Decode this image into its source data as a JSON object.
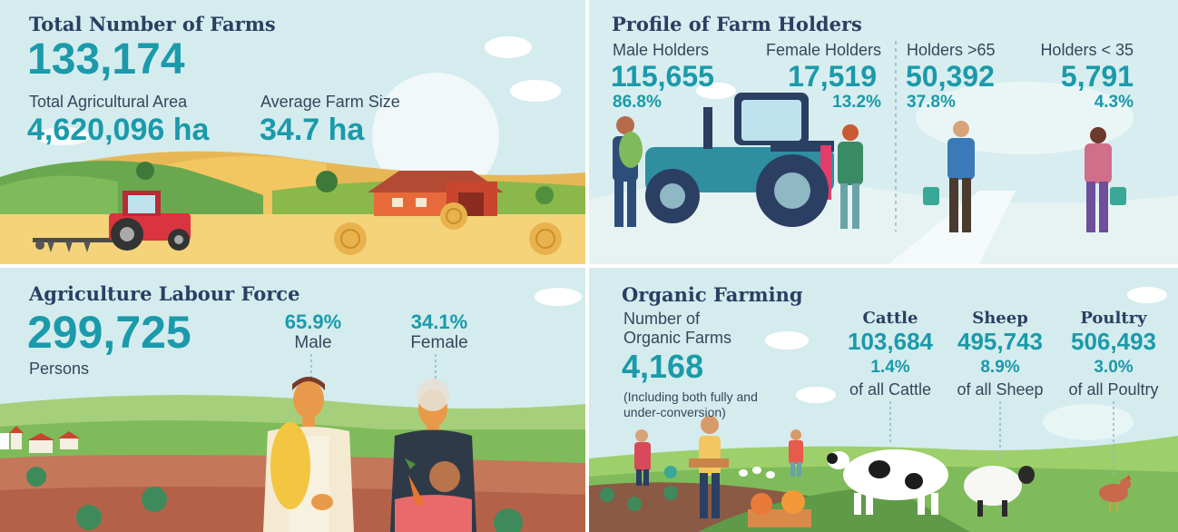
{
  "farms": {
    "title": "Total Number of Farms",
    "total": "133,174",
    "area_label": "Total Agricultural Area",
    "area_value": "4,620,096 ha",
    "size_label": "Average Farm Size",
    "size_value": "34.7 ha"
  },
  "holders": {
    "title": "Profile of Farm Holders",
    "male_label": "Male Holders",
    "male_value": "115,655",
    "male_pct": "86.8%",
    "female_label": "Female Holders",
    "female_value": "17,519",
    "female_pct": "13.2%",
    "over65_label": "Holders >65",
    "over65_value": "50,392",
    "over65_pct": "37.8%",
    "under35_label": "Holders < 35",
    "under35_value": "5,791",
    "under35_pct": "4.3%"
  },
  "labour": {
    "title": "Agriculture Labour Force",
    "total": "299,725",
    "unit": "Persons",
    "male_pct": "65.9%",
    "male_label": "Male",
    "female_pct": "34.1%",
    "female_label": "Female"
  },
  "organic": {
    "title": "Organic Farming",
    "farms_label_1": "Number of",
    "farms_label_2": "Organic Farms",
    "farms_value": "4,168",
    "note_1": "(Including both fully and",
    "note_2": "under-conversion)",
    "cattle_label": "Cattle",
    "cattle_value": "103,684",
    "cattle_pct": "1.4%",
    "cattle_of": "of all Cattle",
    "sheep_label": "Sheep",
    "sheep_value": "495,743",
    "sheep_pct": "8.9%",
    "sheep_of": "of all Sheep",
    "poultry_label": "Poultry",
    "poultry_value": "506,493",
    "poultry_pct": "3.0%",
    "poultry_of": "of all Poultry"
  },
  "colors": {
    "accent": "#1a9aaa",
    "title": "#2b3f63",
    "sky": "#cfe9ec"
  }
}
